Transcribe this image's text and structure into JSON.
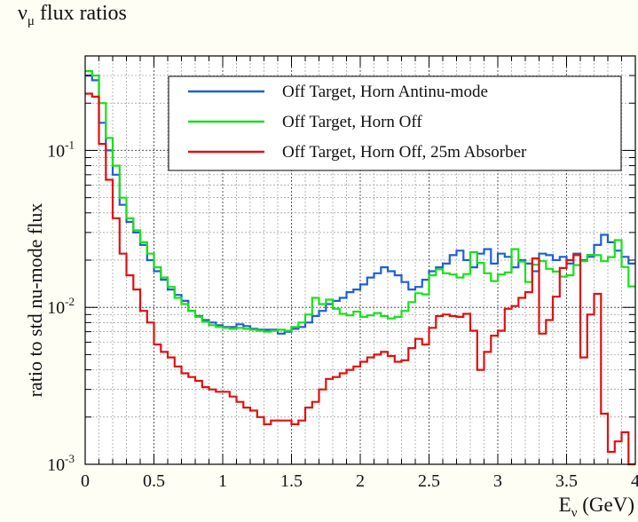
{
  "page": {
    "title_main": "ν",
    "title_sub": "μ",
    "title_rest": " flux ratios"
  },
  "chart_data": {
    "type": "line",
    "title": "νμ flux ratios",
    "xlabel_main": "E",
    "xlabel_sub": "ν",
    "xlabel_rest": " (GeV)",
    "ylabel": "ratio to std nu-mode flux",
    "xlim": [
      0,
      4
    ],
    "ylim": [
      0.001,
      0.4
    ],
    "yscale": "log",
    "grid": true,
    "legend_position": "top-right",
    "x_ticks": [
      {
        "value": 0,
        "label": "0"
      },
      {
        "value": 0.5,
        "label": "0.5"
      },
      {
        "value": 1,
        "label": "1"
      },
      {
        "value": 1.5,
        "label": "1.5"
      },
      {
        "value": 2,
        "label": "2"
      },
      {
        "value": 2.5,
        "label": "2.5"
      },
      {
        "value": 3,
        "label": "3"
      },
      {
        "value": 3.5,
        "label": "3.5"
      },
      {
        "value": 4,
        "label": "4"
      }
    ],
    "y_ticks": [
      {
        "value": 0.001,
        "base": "10",
        "exp": "-3"
      },
      {
        "value": 0.01,
        "base": "10",
        "exp": "-2"
      },
      {
        "value": 0.1,
        "base": "10",
        "exp": "-1"
      }
    ],
    "x": [
      0.0,
      0.05,
      0.1,
      0.15,
      0.2,
      0.25,
      0.3,
      0.35,
      0.4,
      0.45,
      0.5,
      0.55,
      0.6,
      0.65,
      0.7,
      0.75,
      0.8,
      0.85,
      0.9,
      0.95,
      1.0,
      1.05,
      1.1,
      1.15,
      1.2,
      1.25,
      1.3,
      1.35,
      1.4,
      1.45,
      1.5,
      1.55,
      1.6,
      1.65,
      1.7,
      1.75,
      1.8,
      1.85,
      1.9,
      1.95,
      2.0,
      2.05,
      2.1,
      2.15,
      2.2,
      2.25,
      2.3,
      2.35,
      2.4,
      2.45,
      2.5,
      2.55,
      2.6,
      2.65,
      2.7,
      2.75,
      2.8,
      2.85,
      2.9,
      2.95,
      3.0,
      3.05,
      3.1,
      3.15,
      3.2,
      3.25,
      3.3,
      3.35,
      3.4,
      3.45,
      3.5,
      3.55,
      3.6,
      3.65,
      3.7,
      3.75,
      3.8,
      3.85,
      3.9,
      3.95
    ],
    "series": [
      {
        "name": "Off Target, Horn Antinu-mode",
        "color": "#1f5fd6",
        "values": [
          0.3,
          0.28,
          0.15,
          0.1,
          0.07,
          0.045,
          0.035,
          0.03,
          0.025,
          0.02,
          0.017,
          0.015,
          0.013,
          0.012,
          0.011,
          0.0095,
          0.0088,
          0.0083,
          0.008,
          0.0077,
          0.0075,
          0.0075,
          0.0078,
          0.0076,
          0.0073,
          0.0072,
          0.0072,
          0.0072,
          0.0068,
          0.007,
          0.0073,
          0.0075,
          0.008,
          0.0088,
          0.0095,
          0.0105,
          0.011,
          0.0115,
          0.0125,
          0.013,
          0.014,
          0.0155,
          0.0165,
          0.018,
          0.017,
          0.016,
          0.0145,
          0.013,
          0.0135,
          0.015,
          0.017,
          0.018,
          0.019,
          0.0215,
          0.023,
          0.02,
          0.018,
          0.022,
          0.0235,
          0.019,
          0.022,
          0.021,
          0.018,
          0.02,
          0.019,
          0.017,
          0.022,
          0.0215,
          0.02,
          0.021,
          0.019,
          0.022,
          0.02,
          0.021,
          0.025,
          0.029,
          0.026,
          0.023,
          0.021,
          0.019
        ]
      },
      {
        "name": "Off Target, Horn Off",
        "color": "#19e019",
        "values": [
          0.32,
          0.3,
          0.2,
          0.12,
          0.08,
          0.05,
          0.037,
          0.031,
          0.026,
          0.022,
          0.018,
          0.0155,
          0.0135,
          0.0115,
          0.0105,
          0.0095,
          0.0087,
          0.0081,
          0.0077,
          0.0075,
          0.0074,
          0.0073,
          0.0074,
          0.0073,
          0.0072,
          0.0071,
          0.007,
          0.0071,
          0.0072,
          0.0071,
          0.0075,
          0.008,
          0.009,
          0.0115,
          0.0105,
          0.0112,
          0.0098,
          0.0091,
          0.0089,
          0.0094,
          0.0087,
          0.0089,
          0.0092,
          0.0088,
          0.0085,
          0.0087,
          0.0095,
          0.0108,
          0.0123,
          0.0121,
          0.016,
          0.0175,
          0.0165,
          0.0162,
          0.0155,
          0.0163,
          0.0225,
          0.0192,
          0.0165,
          0.0147,
          0.0162,
          0.0167,
          0.0235,
          0.0196,
          0.0145,
          0.0187,
          0.0197,
          0.0176,
          0.0169,
          0.0157,
          0.016,
          0.0186,
          0.0197,
          0.0216,
          0.0215,
          0.0197,
          0.0209,
          0.0268,
          0.0181,
          0.0136
        ]
      },
      {
        "name": "Off Target, Horn Off, 25m Absorber",
        "color": "#e01010",
        "values": [
          0.23,
          0.22,
          0.11,
          0.065,
          0.037,
          0.022,
          0.016,
          0.013,
          0.0095,
          0.008,
          0.0058,
          0.0052,
          0.0048,
          0.0042,
          0.0038,
          0.0036,
          0.0034,
          0.0031,
          0.003,
          0.0029,
          0.0029,
          0.0027,
          0.0025,
          0.0023,
          0.0022,
          0.002,
          0.0018,
          0.0019,
          0.0019,
          0.0019,
          0.0018,
          0.0019,
          0.0023,
          0.0025,
          0.003,
          0.0035,
          0.0036,
          0.0038,
          0.004,
          0.0042,
          0.0045,
          0.0048,
          0.005,
          0.0052,
          0.0049,
          0.0045,
          0.0046,
          0.0055,
          0.0063,
          0.0058,
          0.0074,
          0.0088,
          0.009,
          0.0088,
          0.0087,
          0.0091,
          0.0071,
          0.004,
          0.0052,
          0.0066,
          0.0071,
          0.0098,
          0.0102,
          0.0115,
          0.0125,
          0.0205,
          0.0068,
          0.0083,
          0.0117,
          0.0178,
          0.02,
          0.0215,
          0.0048,
          0.009,
          0.0122,
          0.0021,
          0.0012,
          0.0014,
          0.0016,
          0.0009
        ]
      }
    ]
  }
}
